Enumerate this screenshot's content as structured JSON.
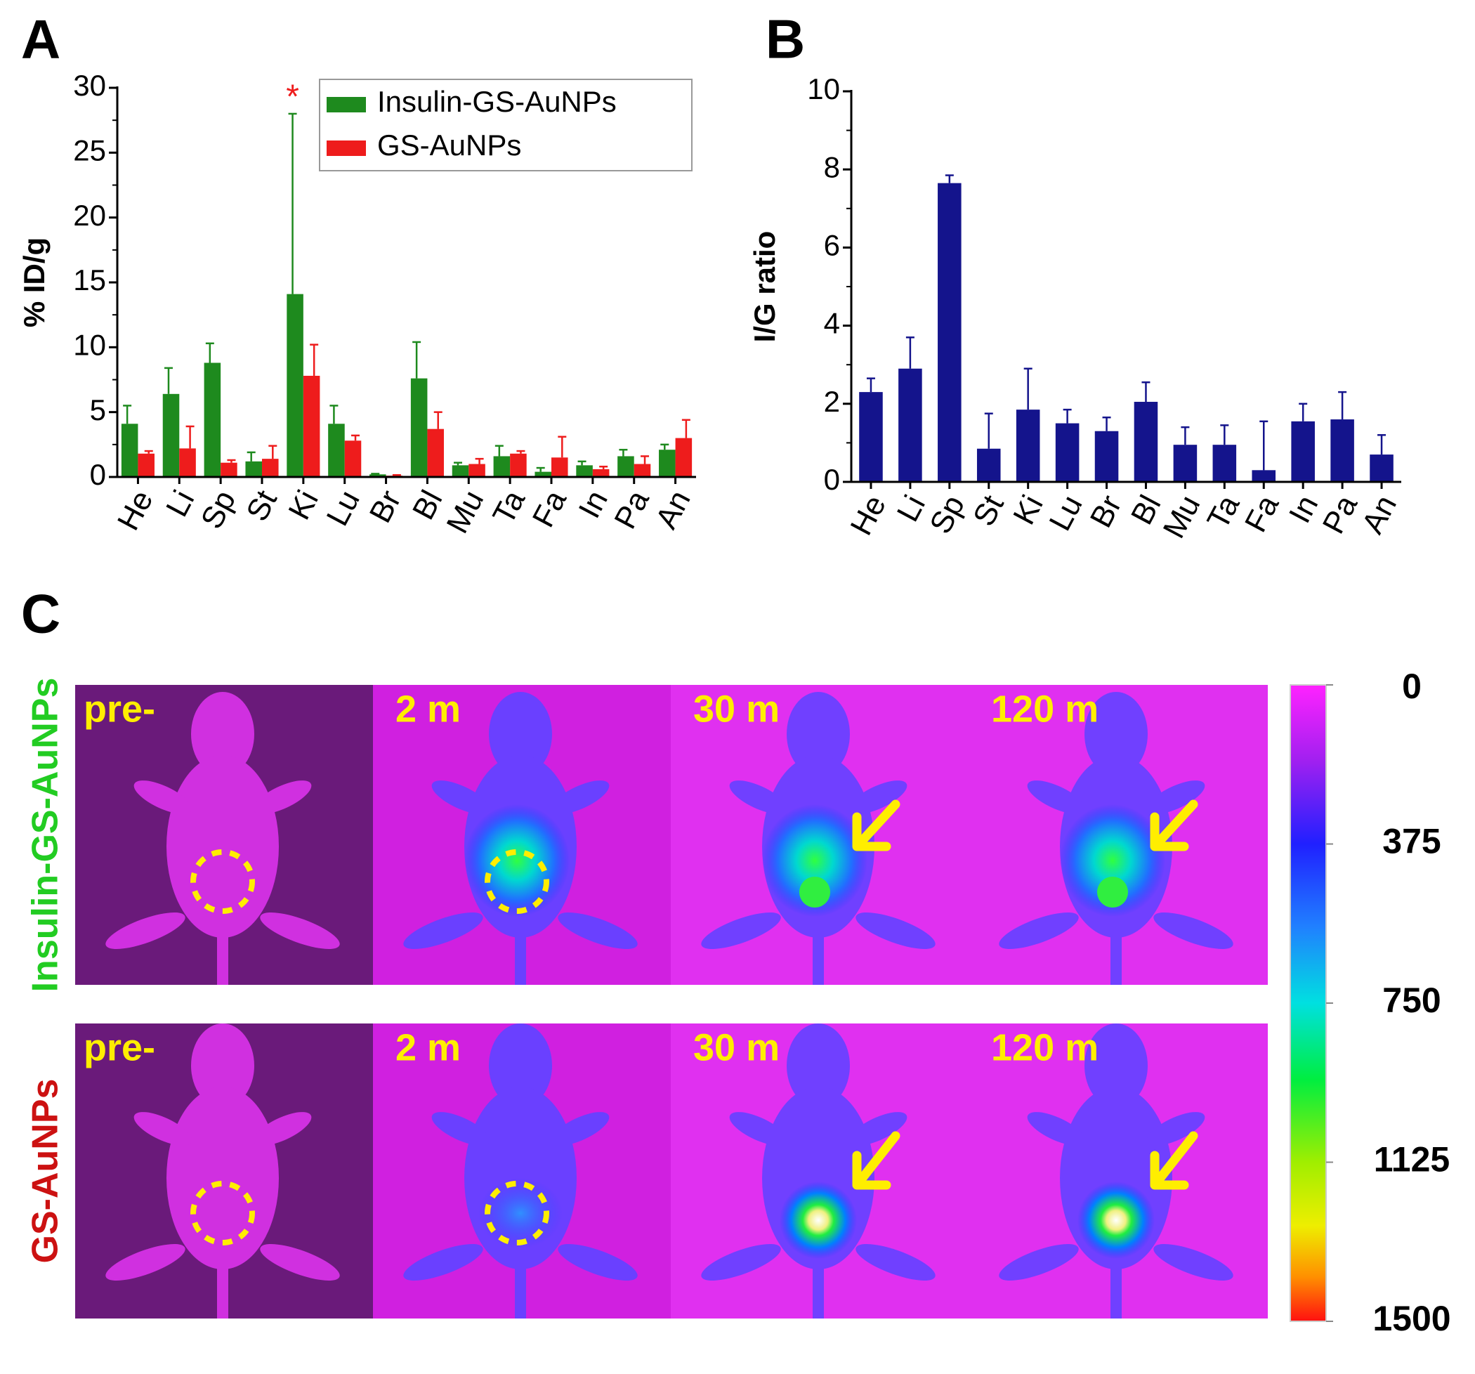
{
  "chart_data": [
    {
      "type": "bar",
      "panel_label": "A",
      "ylabel": "% ID/g",
      "annotation": "*",
      "categories": [
        "He",
        "Li",
        "Sp",
        "St",
        "Ki",
        "Lu",
        "Br",
        "Bl",
        "Mu",
        "Ta",
        "Fa",
        "In",
        "Pa",
        "An"
      ],
      "series": [
        {
          "name": "Insulin-GS-AuNPs",
          "color": "#1e8a1e",
          "values": [
            4.1,
            6.4,
            8.8,
            1.2,
            14.1,
            4.1,
            0.2,
            7.6,
            0.9,
            1.6,
            0.4,
            0.9,
            1.6,
            2.1
          ],
          "errors": [
            1.4,
            2.0,
            1.5,
            0.7,
            13.9,
            1.4,
            0.05,
            2.8,
            0.2,
            0.8,
            0.3,
            0.3,
            0.5,
            0.4
          ]
        },
        {
          "name": "GS-AuNPs",
          "color": "#ee1c1c",
          "values": [
            1.8,
            2.2,
            1.1,
            1.4,
            7.8,
            2.8,
            0.1,
            3.7,
            1.0,
            1.8,
            1.5,
            0.6,
            1.0,
            3.0
          ],
          "errors": [
            0.2,
            1.7,
            0.2,
            1.0,
            2.4,
            0.4,
            0.05,
            1.3,
            0.4,
            0.2,
            1.6,
            0.2,
            0.6,
            1.4
          ]
        }
      ],
      "ylim": [
        0,
        30
      ],
      "yticks": [
        0,
        5,
        10,
        15,
        20,
        25,
        30
      ],
      "legend": "upper right"
    },
    {
      "type": "bar",
      "panel_label": "B",
      "ylabel": "I/G ratio",
      "categories": [
        "He",
        "Li",
        "Sp",
        "St",
        "Ki",
        "Lu",
        "Br",
        "Bl",
        "Mu",
        "Ta",
        "Fa",
        "In",
        "Pa",
        "An"
      ],
      "series": [
        {
          "name": null,
          "color": "#14148c",
          "values": [
            2.3,
            2.9,
            7.65,
            0.85,
            1.85,
            1.5,
            1.3,
            2.05,
            0.95,
            0.95,
            0.3,
            1.55,
            1.6,
            0.7
          ],
          "errors": [
            0.35,
            0.8,
            0.2,
            0.9,
            1.05,
            0.35,
            0.35,
            0.5,
            0.45,
            0.5,
            1.25,
            0.45,
            0.7,
            0.5
          ]
        }
      ],
      "ylim": [
        0,
        10
      ],
      "yticks": [
        0,
        2,
        4,
        6,
        8,
        10
      ]
    }
  ],
  "panel_c": {
    "panel_label": "C",
    "rows": [
      {
        "label": "Insulin-GS-AuNPs",
        "color": "#22cc22",
        "times": [
          "pre-",
          "2 m",
          "30 m",
          "120 m"
        ]
      },
      {
        "label": "GS-AuNPs",
        "color": "#cc1111",
        "times": [
          "pre-",
          "2 m",
          "30 m",
          "120 m"
        ]
      }
    ],
    "colorbar": {
      "lim": [
        0,
        1500
      ],
      "ticks": [
        0,
        375,
        750,
        1125,
        1500
      ]
    }
  }
}
